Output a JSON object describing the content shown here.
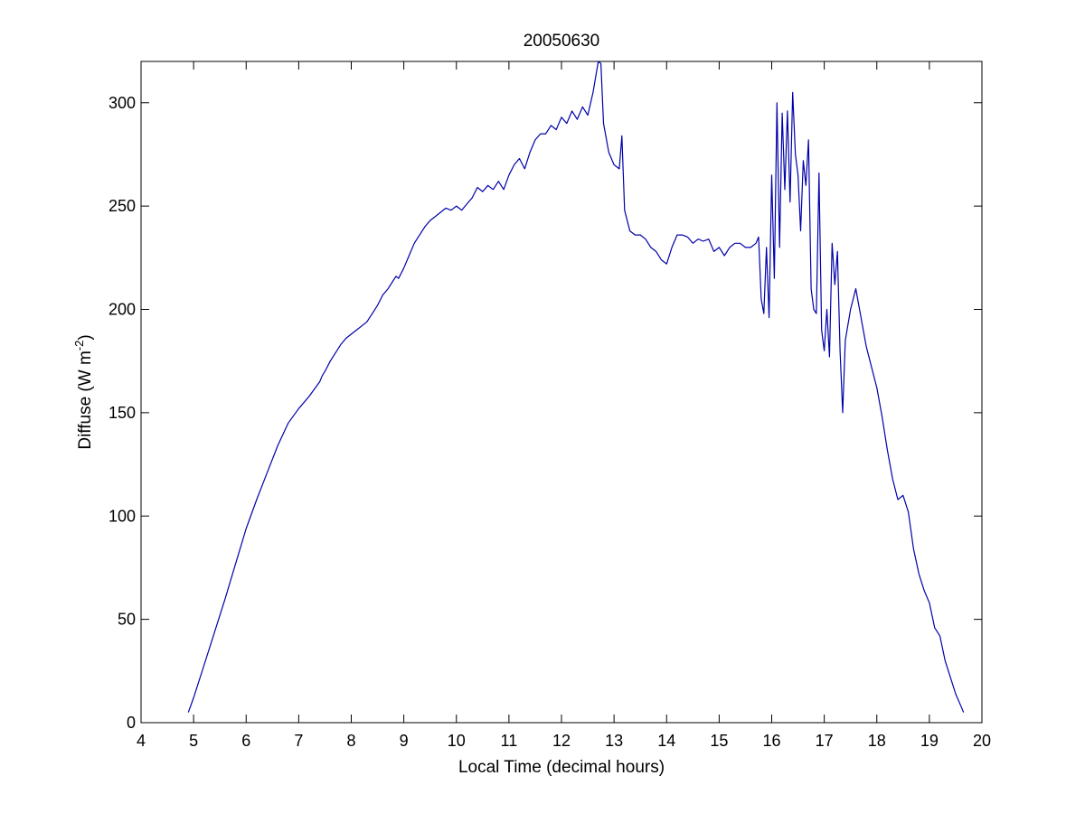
{
  "chart_data": {
    "type": "line",
    "title": "20050630",
    "xlabel": "Local Time (decimal hours)",
    "ylabel_main": "Diffuse (W m",
    "ylabel_sup": "-2",
    "ylabel_close": ")",
    "xlim": [
      4,
      20
    ],
    "ylim": [
      0,
      320
    ],
    "xticks": [
      4,
      5,
      6,
      7,
      8,
      9,
      10,
      11,
      12,
      13,
      14,
      15,
      16,
      17,
      18,
      19,
      20
    ],
    "yticks": [
      0,
      50,
      100,
      150,
      200,
      250,
      300
    ],
    "grid": false,
    "line_color": "#0000aa",
    "series": [
      {
        "x": [
          4.9,
          5.0,
          5.2,
          5.4,
          5.6,
          5.8,
          6.0,
          6.2,
          6.4,
          6.6,
          6.8,
          7.0,
          7.2,
          7.4,
          7.45,
          7.5,
          7.6,
          7.8,
          7.9,
          8.0,
          8.1,
          8.2,
          8.3,
          8.35,
          8.4,
          8.5,
          8.6,
          8.7,
          8.8,
          8.85,
          8.9,
          9.0,
          9.1,
          9.2,
          9.3,
          9.4,
          9.5,
          9.6,
          9.7,
          9.8,
          9.9,
          10.0,
          10.1,
          10.2,
          10.3,
          10.4,
          10.5,
          10.6,
          10.7,
          10.8,
          10.9,
          11.0,
          11.1,
          11.2,
          11.3,
          11.4,
          11.5,
          11.6,
          11.7,
          11.8,
          11.9,
          12.0,
          12.1,
          12.2,
          12.3,
          12.4,
          12.5,
          12.6,
          12.7,
          12.75,
          12.8,
          12.9,
          13.0,
          13.1,
          13.15,
          13.2,
          13.3,
          13.4,
          13.5,
          13.6,
          13.7,
          13.8,
          13.9,
          14.0,
          14.1,
          14.2,
          14.3,
          14.4,
          14.5,
          14.6,
          14.7,
          14.8,
          14.9,
          15.0,
          15.1,
          15.2,
          15.3,
          15.4,
          15.5,
          15.6,
          15.7,
          15.75,
          15.8,
          15.85,
          15.9,
          15.95,
          16.0,
          16.05,
          16.1,
          16.15,
          16.2,
          16.25,
          16.3,
          16.35,
          16.4,
          16.45,
          16.5,
          16.55,
          16.6,
          16.65,
          16.7,
          16.75,
          16.8,
          16.85,
          16.9,
          16.95,
          17.0,
          17.05,
          17.1,
          17.15,
          17.2,
          17.25,
          17.3,
          17.35,
          17.4,
          17.5,
          17.6,
          17.8,
          18.0,
          18.1,
          18.2,
          18.3,
          18.4,
          18.5,
          18.6,
          18.7,
          18.8,
          18.9,
          19.0,
          19.1,
          19.2,
          19.3,
          19.4,
          19.5,
          19.6,
          19.65
        ],
        "y": [
          5,
          12,
          28,
          44,
          60,
          77,
          94,
          108,
          121,
          134,
          145,
          152,
          158,
          165,
          168,
          170,
          175,
          183,
          186,
          188,
          190,
          192,
          194,
          196,
          198,
          202,
          207,
          210,
          214,
          216,
          215,
          220,
          226,
          232,
          236,
          240,
          243,
          245,
          247,
          249,
          248,
          250,
          248,
          251,
          254,
          259,
          257,
          260,
          258,
          262,
          258,
          265,
          270,
          273,
          268,
          276,
          282,
          285,
          285,
          289,
          287,
          293,
          290,
          296,
          292,
          298,
          294,
          305,
          320,
          319,
          290,
          276,
          270,
          268,
          284,
          248,
          238,
          236,
          236,
          234,
          230,
          228,
          224,
          222,
          230,
          236,
          236,
          235,
          232,
          234,
          233,
          234,
          228,
          230,
          226,
          230,
          232,
          232,
          230,
          230,
          232,
          235,
          205,
          198,
          230,
          196,
          265,
          215,
          300,
          230,
          295,
          258,
          296,
          252,
          305,
          275,
          265,
          238,
          272,
          260,
          282,
          210,
          200,
          198,
          266,
          190,
          180,
          200,
          177,
          232,
          212,
          228,
          180,
          150,
          185,
          200,
          210,
          182,
          162,
          148,
          132,
          118,
          108,
          110,
          102,
          84,
          72,
          64,
          58,
          46,
          42,
          30,
          22,
          14,
          8,
          5
        ]
      }
    ]
  }
}
